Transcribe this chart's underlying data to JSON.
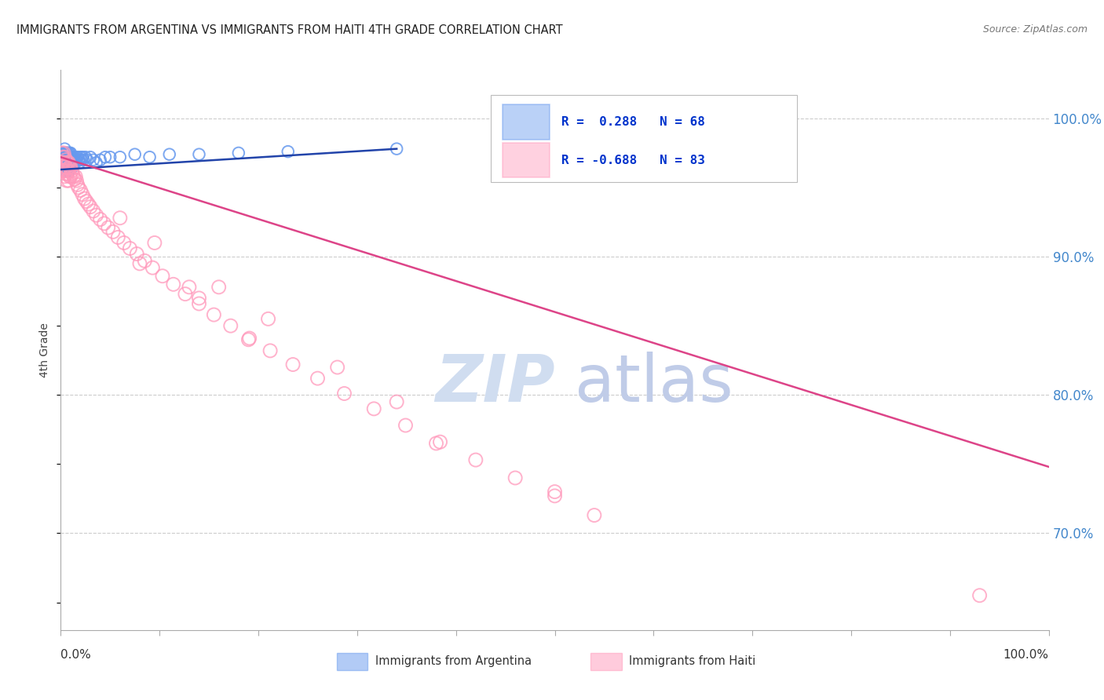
{
  "title": "IMMIGRANTS FROM ARGENTINA VS IMMIGRANTS FROM HAITI 4TH GRADE CORRELATION CHART",
  "source": "Source: ZipAtlas.com",
  "ylabel": "4th Grade",
  "ytick_labels": [
    "100.0%",
    "90.0%",
    "80.0%",
    "70.0%"
  ],
  "ytick_values": [
    1.0,
    0.9,
    0.8,
    0.7
  ],
  "xlim": [
    0.0,
    1.0
  ],
  "ylim": [
    0.63,
    1.035
  ],
  "argentina_color": "#6699ee",
  "haiti_color": "#ff99bb",
  "argentina_line_color": "#2244aa",
  "haiti_line_color": "#dd4488",
  "watermark_zip": "ZIP",
  "watermark_atlas": "atlas",
  "watermark_color_zip": "#d0ddf0",
  "watermark_color_atlas": "#c0cce8",
  "background_color": "#ffffff",
  "grid_color": "#cccccc",
  "title_color": "#222222",
  "source_color": "#777777",
  "legend_color": "#0033cc",
  "legend_bg": "#ffffff",
  "legend_border": "#bbbbbb",
  "argentina_scatter_x": [
    0.001,
    0.001,
    0.002,
    0.002,
    0.002,
    0.003,
    0.003,
    0.003,
    0.003,
    0.004,
    0.004,
    0.004,
    0.004,
    0.005,
    0.005,
    0.005,
    0.005,
    0.006,
    0.006,
    0.006,
    0.006,
    0.007,
    0.007,
    0.007,
    0.007,
    0.008,
    0.008,
    0.008,
    0.008,
    0.009,
    0.009,
    0.009,
    0.01,
    0.01,
    0.01,
    0.011,
    0.011,
    0.012,
    0.012,
    0.013,
    0.013,
    0.014,
    0.015,
    0.015,
    0.016,
    0.017,
    0.018,
    0.019,
    0.02,
    0.021,
    0.022,
    0.023,
    0.025,
    0.027,
    0.03,
    0.033,
    0.036,
    0.04,
    0.045,
    0.05,
    0.06,
    0.075,
    0.09,
    0.11,
    0.14,
    0.18,
    0.23,
    0.34
  ],
  "argentina_scatter_y": [
    0.97,
    0.975,
    0.968,
    0.972,
    0.965,
    0.975,
    0.97,
    0.968,
    0.965,
    0.978,
    0.972,
    0.968,
    0.964,
    0.975,
    0.97,
    0.968,
    0.962,
    0.975,
    0.97,
    0.968,
    0.965,
    0.975,
    0.972,
    0.968,
    0.965,
    0.975,
    0.97,
    0.968,
    0.962,
    0.975,
    0.97,
    0.965,
    0.975,
    0.97,
    0.965,
    0.972,
    0.968,
    0.97,
    0.965,
    0.972,
    0.968,
    0.97,
    0.972,
    0.968,
    0.97,
    0.972,
    0.97,
    0.968,
    0.972,
    0.97,
    0.972,
    0.97,
    0.972,
    0.97,
    0.972,
    0.97,
    0.968,
    0.97,
    0.972,
    0.972,
    0.972,
    0.974,
    0.972,
    0.974,
    0.974,
    0.975,
    0.976,
    0.978
  ],
  "haiti_scatter_x": [
    0.001,
    0.001,
    0.002,
    0.002,
    0.002,
    0.003,
    0.003,
    0.003,
    0.004,
    0.004,
    0.004,
    0.005,
    0.005,
    0.005,
    0.006,
    0.006,
    0.006,
    0.007,
    0.007,
    0.008,
    0.008,
    0.008,
    0.009,
    0.009,
    0.01,
    0.01,
    0.011,
    0.012,
    0.013,
    0.014,
    0.015,
    0.016,
    0.017,
    0.018,
    0.02,
    0.022,
    0.024,
    0.026,
    0.028,
    0.03,
    0.033,
    0.036,
    0.04,
    0.044,
    0.048,
    0.053,
    0.058,
    0.064,
    0.07,
    0.077,
    0.085,
    0.093,
    0.103,
    0.114,
    0.126,
    0.14,
    0.155,
    0.172,
    0.191,
    0.212,
    0.235,
    0.26,
    0.287,
    0.317,
    0.349,
    0.384,
    0.42,
    0.46,
    0.5,
    0.54,
    0.095,
    0.16,
    0.21,
    0.28,
    0.34,
    0.5,
    0.38,
    0.14,
    0.13,
    0.19,
    0.06,
    0.08,
    0.93
  ],
  "haiti_scatter_y": [
    0.975,
    0.968,
    0.972,
    0.968,
    0.962,
    0.975,
    0.968,
    0.962,
    0.972,
    0.965,
    0.958,
    0.97,
    0.965,
    0.96,
    0.968,
    0.962,
    0.955,
    0.968,
    0.96,
    0.968,
    0.962,
    0.955,
    0.965,
    0.958,
    0.965,
    0.958,
    0.962,
    0.96,
    0.958,
    0.956,
    0.958,
    0.955,
    0.952,
    0.95,
    0.948,
    0.945,
    0.942,
    0.94,
    0.938,
    0.936,
    0.933,
    0.93,
    0.927,
    0.924,
    0.921,
    0.918,
    0.914,
    0.91,
    0.906,
    0.902,
    0.897,
    0.892,
    0.886,
    0.88,
    0.873,
    0.866,
    0.858,
    0.85,
    0.841,
    0.832,
    0.822,
    0.812,
    0.801,
    0.79,
    0.778,
    0.766,
    0.753,
    0.74,
    0.727,
    0.713,
    0.91,
    0.878,
    0.855,
    0.82,
    0.795,
    0.73,
    0.765,
    0.87,
    0.878,
    0.84,
    0.928,
    0.895,
    0.655
  ],
  "argentina_trendline": [
    0.0,
    0.34,
    0.963,
    0.978
  ],
  "haiti_trendline": [
    0.0,
    1.0,
    0.972,
    0.748
  ],
  "xtick_positions": [
    0.0,
    0.1,
    0.2,
    0.3,
    0.4,
    0.5,
    0.6,
    0.7,
    0.8,
    0.9,
    1.0
  ],
  "legend_argentina_text": "R =  0.288   N = 68",
  "legend_haiti_text": "R = -0.688   N = 83",
  "bottom_legend_argentina": "Immigrants from Argentina",
  "bottom_legend_haiti": "Immigrants from Haiti"
}
